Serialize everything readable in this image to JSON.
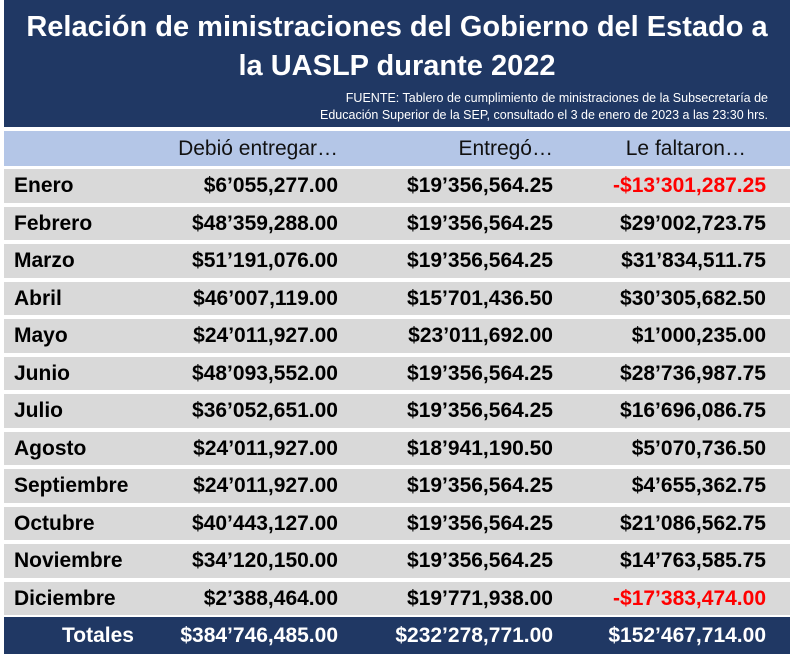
{
  "title_line1": "Relación de ministraciones del Gobierno del Estado a",
  "title_line2": "la UASLP durante 2022",
  "source_line1": "FUENTE: Tablero de cumplimiento de ministraciones de la Subsecretaría de",
  "source_line2": "Educación Superior de la SEP, consultado el 3 de enero de 2023 a las 23:30 hrs.",
  "columns": [
    "",
    "Debió entregar…",
    "Entregó…",
    "Le faltaron…"
  ],
  "rows": [
    {
      "month": "Enero",
      "debio": "$6’055,277.00",
      "entrego": "$19’356,564.25",
      "falta": "-$13’301,287.25",
      "negative": true
    },
    {
      "month": "Febrero",
      "debio": "$48’359,288.00",
      "entrego": "$19’356,564.25",
      "falta": "$29’002,723.75",
      "negative": false
    },
    {
      "month": "Marzo",
      "debio": "$51’191,076.00",
      "entrego": "$19’356,564.25",
      "falta": "$31’834,511.75",
      "negative": false
    },
    {
      "month": "Abril",
      "debio": "$46’007,119.00",
      "entrego": "$15’701,436.50",
      "falta": "$30’305,682.50",
      "negative": false
    },
    {
      "month": "Mayo",
      "debio": "$24’011,927.00",
      "entrego": "$23’011,692.00",
      "falta": "$1’000,235.00",
      "negative": false
    },
    {
      "month": "Junio",
      "debio": "$48’093,552.00",
      "entrego": "$19’356,564.25",
      "falta": "$28’736,987.75",
      "negative": false
    },
    {
      "month": "Julio",
      "debio": "$36’052,651.00",
      "entrego": "$19’356,564.25",
      "falta": "$16’696,086.75",
      "negative": false
    },
    {
      "month": "Agosto",
      "debio": "$24’011,927.00",
      "entrego": "$18’941,190.50",
      "falta": "$5’070,736.50",
      "negative": false
    },
    {
      "month": "Septiembre",
      "debio": "$24’011,927.00",
      "entrego": "$19’356,564.25",
      "falta": "$4’655,362.75",
      "negative": false
    },
    {
      "month": "Octubre",
      "debio": "$40’443,127.00",
      "entrego": "$19’356,564.25",
      "falta": "$21’086,562.75",
      "negative": false
    },
    {
      "month": "Noviembre",
      "debio": "$34’120,150.00",
      "entrego": "$19’356,564.25",
      "falta": "$14’763,585.75",
      "negative": false
    },
    {
      "month": "Diciembre",
      "debio": "$2’388,464.00",
      "entrego": "$19’771,938.00",
      "falta": "-$17’383,474.00",
      "negative": true
    }
  ],
  "totals": {
    "label": "Totales",
    "debio": "$384’746,485.00",
    "entrego": "$232’278,771.00",
    "falta": "$152’467,714.00"
  },
  "colors": {
    "header_bg": "#203864",
    "column_header_bg": "#b4c6e7",
    "row_bg": "#d9d9d9",
    "negative": "#ff0000"
  }
}
